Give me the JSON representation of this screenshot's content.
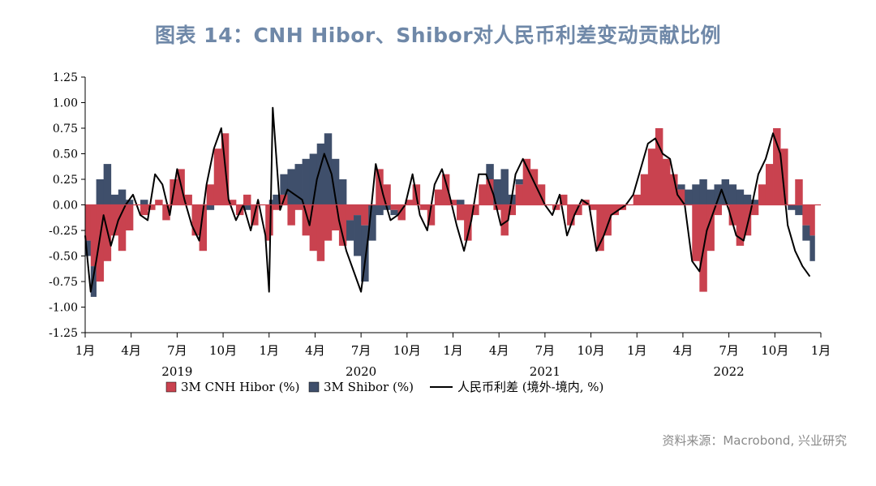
{
  "title": "图表 14：CNH Hibor、Shibor对人民币利差变动贡献比例",
  "source": "资料来源：Macrobond, 兴业研究",
  "colors": {
    "cnh": "#c9424f",
    "shibor": "#3f4f6b",
    "spread": "#000000",
    "title": "#6f88a8"
  },
  "chart_data": {
    "type": "area",
    "ylim": [
      -1.25,
      1.25
    ],
    "yticks": [
      1.25,
      1.0,
      0.75,
      0.5,
      0.25,
      0.0,
      -0.25,
      -0.5,
      -0.75,
      -1.0,
      -1.25
    ],
    "ytick_labels": [
      "1.25",
      "1.00",
      "0.75",
      "0.50",
      "0.25",
      "0.00",
      "-0.25",
      "-0.50",
      "-0.75",
      "-1.00",
      "-1.25"
    ],
    "xlim": [
      2019.0,
      2023.0
    ],
    "xticks": [
      2019.0,
      2019.25,
      2019.5,
      2019.75,
      2020.0,
      2020.25,
      2020.5,
      2020.75,
      2021.0,
      2021.25,
      2021.5,
      2021.75,
      2022.0,
      2022.25,
      2022.5,
      2022.75,
      2023.0
    ],
    "xtick_labels": [
      "1月",
      "4月",
      "7月",
      "10月",
      "1月",
      "4月",
      "7月",
      "10月",
      "1月",
      "4月",
      "7月",
      "10月",
      "1月",
      "4月",
      "7月",
      "10月",
      "1月"
    ],
    "year_labels": [
      {
        "x": 2019.5,
        "label": "2019"
      },
      {
        "x": 2020.5,
        "label": "2020"
      },
      {
        "x": 2021.5,
        "label": "2021"
      },
      {
        "x": 2022.5,
        "label": "2022"
      }
    ],
    "legend": [
      "3M CNH Hibor (%)",
      "3M Shibor (%)",
      "人民币利差 (境外-境内, %)"
    ],
    "legend_position": "bottom",
    "x": [
      2019.0,
      2019.03,
      2019.06,
      2019.1,
      2019.14,
      2019.18,
      2019.22,
      2019.26,
      2019.3,
      2019.34,
      2019.38,
      2019.42,
      2019.46,
      2019.5,
      2019.54,
      2019.58,
      2019.62,
      2019.66,
      2019.7,
      2019.74,
      2019.78,
      2019.82,
      2019.86,
      2019.9,
      2019.94,
      2019.98,
      2020.0,
      2020.02,
      2020.06,
      2020.1,
      2020.14,
      2020.18,
      2020.22,
      2020.26,
      2020.3,
      2020.34,
      2020.38,
      2020.42,
      2020.46,
      2020.5,
      2020.54,
      2020.58,
      2020.62,
      2020.66,
      2020.7,
      2020.74,
      2020.78,
      2020.82,
      2020.86,
      2020.9,
      2020.94,
      2020.98,
      2021.02,
      2021.06,
      2021.1,
      2021.14,
      2021.18,
      2021.22,
      2021.26,
      2021.3,
      2021.34,
      2021.38,
      2021.42,
      2021.46,
      2021.5,
      2021.54,
      2021.58,
      2021.62,
      2021.66,
      2021.7,
      2021.74,
      2021.78,
      2021.82,
      2021.86,
      2021.9,
      2021.94,
      2021.98,
      2022.02,
      2022.06,
      2022.1,
      2022.14,
      2022.18,
      2022.22,
      2022.26,
      2022.3,
      2022.34,
      2022.38,
      2022.42,
      2022.46,
      2022.5,
      2022.54,
      2022.58,
      2022.62,
      2022.66,
      2022.7,
      2022.74,
      2022.78,
      2022.82,
      2022.86,
      2022.9,
      2022.94
    ],
    "series": [
      {
        "name": "3M CNH Hibor (%)",
        "values": [
          -0.35,
          -0.6,
          -0.75,
          -0.55,
          -0.3,
          -0.45,
          -0.25,
          0.0,
          -0.1,
          -0.05,
          0.05,
          -0.15,
          0.25,
          0.35,
          0.1,
          -0.3,
          -0.45,
          0.2,
          0.55,
          0.7,
          0.05,
          -0.1,
          0.1,
          -0.2,
          0.0,
          -0.35,
          -0.3,
          -0.05,
          0.1,
          -0.2,
          -0.05,
          -0.3,
          -0.45,
          -0.55,
          -0.35,
          -0.25,
          -0.4,
          -0.15,
          -0.1,
          -0.2,
          0.0,
          0.35,
          0.2,
          -0.05,
          -0.15,
          0.05,
          0.2,
          -0.05,
          -0.2,
          0.15,
          0.3,
          0.05,
          -0.15,
          -0.35,
          -0.1,
          0.2,
          0.25,
          -0.05,
          -0.3,
          -0.1,
          0.2,
          0.45,
          0.35,
          0.2,
          0.0,
          -0.05,
          0.1,
          -0.2,
          -0.1,
          0.05,
          -0.05,
          -0.45,
          -0.3,
          -0.1,
          -0.05,
          0.0,
          0.1,
          0.3,
          0.55,
          0.75,
          0.45,
          0.3,
          0.15,
          0.0,
          -0.55,
          -0.85,
          -0.45,
          -0.1,
          0.0,
          -0.2,
          -0.4,
          -0.3,
          -0.1,
          0.2,
          0.4,
          0.75,
          0.55,
          0.0,
          0.25,
          -0.2,
          -0.3
        ]
      },
      {
        "name": "3M Shibor (%)",
        "values": [
          -0.15,
          -0.3,
          0.25,
          0.4,
          0.1,
          0.15,
          0.05,
          0.0,
          0.05,
          0.0,
          0.0,
          0.0,
          0.0,
          0.0,
          0.0,
          0.0,
          0.0,
          -0.05,
          0.0,
          0.0,
          0.0,
          0.0,
          -0.05,
          0.0,
          0.0,
          0.0,
          0.05,
          0.1,
          0.2,
          0.35,
          0.4,
          0.45,
          0.5,
          0.6,
          0.7,
          0.45,
          0.25,
          -0.2,
          -0.4,
          -0.55,
          -0.35,
          -0.1,
          -0.05,
          -0.05,
          0.0,
          0.0,
          0.0,
          0.0,
          0.0,
          0.0,
          0.0,
          0.0,
          0.05,
          0.0,
          0.0,
          0.0,
          0.15,
          0.25,
          0.35,
          0.1,
          0.05,
          0.0,
          0.0,
          0.0,
          0.0,
          0.0,
          0.0,
          0.0,
          0.0,
          0.0,
          0.0,
          0.0,
          0.0,
          0.0,
          0.0,
          0.0,
          0.0,
          0.0,
          0.0,
          0.0,
          0.0,
          0.0,
          0.05,
          0.15,
          0.2,
          0.25,
          0.15,
          0.2,
          0.25,
          0.2,
          0.15,
          0.1,
          0.05,
          0.0,
          0.0,
          0.0,
          0.0,
          -0.05,
          -0.1,
          -0.15,
          -0.25
        ]
      },
      {
        "name": "人民币利差 (境外-境内, %)",
        "values": [
          -0.3,
          -0.85,
          -0.55,
          -0.1,
          -0.4,
          -0.15,
          0.0,
          0.1,
          -0.1,
          -0.15,
          0.3,
          0.2,
          -0.1,
          0.35,
          0.05,
          -0.2,
          -0.35,
          0.2,
          0.55,
          0.75,
          0.05,
          -0.15,
          0.0,
          -0.25,
          0.05,
          -0.3,
          -0.85,
          0.95,
          -0.05,
          0.15,
          0.1,
          0.05,
          -0.2,
          0.25,
          0.5,
          0.3,
          -0.15,
          -0.45,
          -0.65,
          -0.85,
          -0.3,
          0.4,
          0.1,
          -0.15,
          -0.1,
          0.0,
          0.3,
          -0.1,
          -0.25,
          0.2,
          0.35,
          0.1,
          -0.2,
          -0.45,
          -0.15,
          0.3,
          0.3,
          0.1,
          -0.2,
          -0.15,
          0.3,
          0.45,
          0.3,
          0.15,
          0.0,
          -0.1,
          0.1,
          -0.3,
          -0.1,
          0.05,
          0.0,
          -0.45,
          -0.3,
          -0.1,
          -0.05,
          0.0,
          0.1,
          0.35,
          0.6,
          0.65,
          0.5,
          0.45,
          0.1,
          0.0,
          -0.55,
          -0.65,
          -0.25,
          -0.05,
          0.15,
          -0.05,
          -0.3,
          -0.35,
          -0.05,
          0.3,
          0.45,
          0.7,
          0.5,
          -0.2,
          -0.45,
          -0.6,
          -0.7
        ]
      }
    ]
  }
}
